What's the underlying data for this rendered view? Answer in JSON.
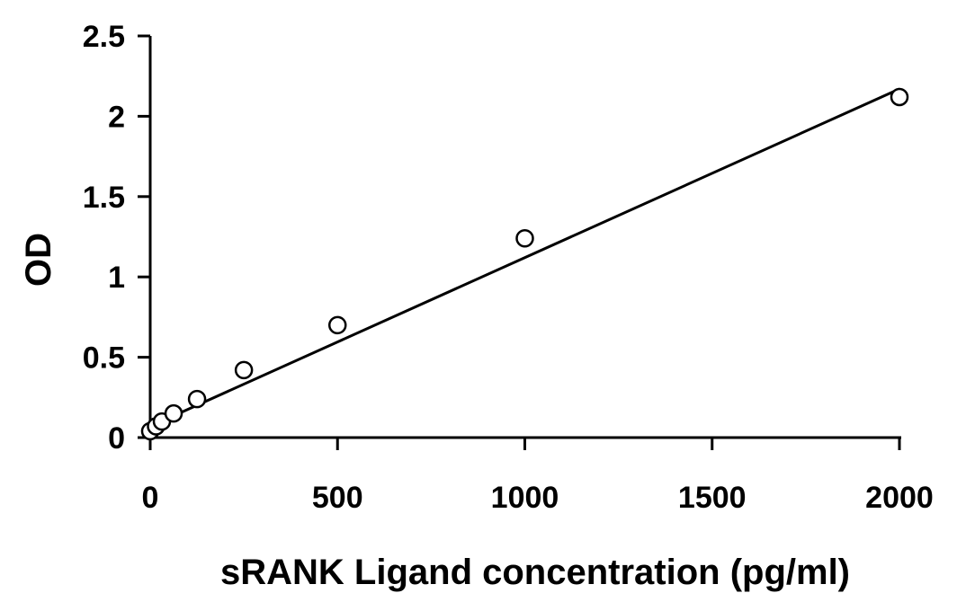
{
  "chart_data": {
    "type": "scatter",
    "title": "",
    "xlabel": "sRANK Ligand concentration (pg/ml)",
    "ylabel": "OD",
    "xlim": [
      0,
      2000
    ],
    "ylim": [
      0,
      2.5
    ],
    "x_ticks": [
      0,
      500,
      1000,
      1500,
      2000
    ],
    "x_tick_labels": [
      "0",
      "500",
      "1000",
      "1500",
      "2000"
    ],
    "y_ticks": [
      0,
      0.5,
      1,
      1.5,
      2,
      2.5
    ],
    "y_tick_labels": [
      "0",
      "0.5",
      "1",
      "1.5",
      "2",
      "2.5"
    ],
    "grid": false,
    "legend": "none",
    "series": [
      {
        "marker": "open-circle",
        "x": [
          0,
          15.6,
          31.25,
          62.5,
          125,
          250,
          500,
          1000,
          2000
        ],
        "y": [
          0.04,
          0.07,
          0.1,
          0.15,
          0.24,
          0.42,
          0.7,
          1.24,
          2.12
        ]
      }
    ],
    "trendline": {
      "type": "linear",
      "x": [
        0,
        2000
      ],
      "y": [
        0.07,
        2.17
      ]
    },
    "colors": {
      "axis": "#000000",
      "marker_stroke": "#000000",
      "marker_fill": "#ffffff",
      "line": "#000000"
    }
  }
}
